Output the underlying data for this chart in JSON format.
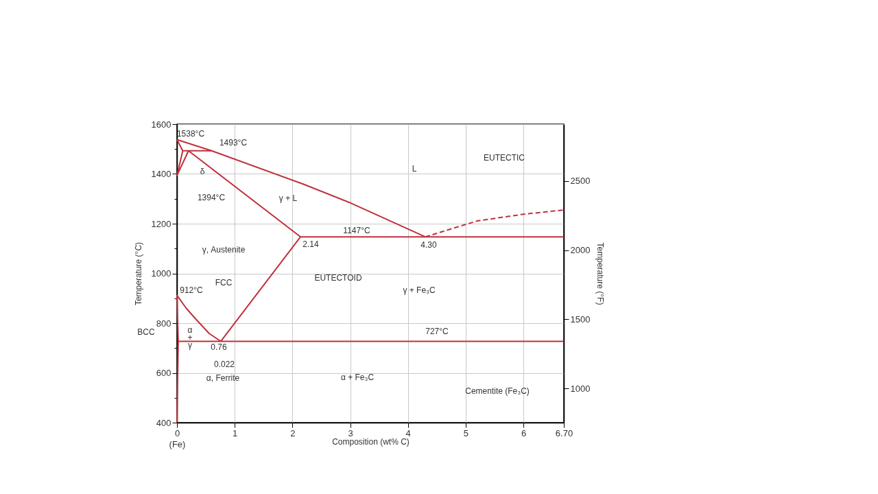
{
  "chart_data": {
    "type": "line",
    "xlabel": "Composition (wt% C)",
    "ylabel": "Temperature (°C)",
    "y2label": "Temperature (°F)",
    "xlim": [
      0,
      6.7
    ],
    "xticks": [
      {
        "value": 0,
        "label": "0\n(Fe)"
      },
      1,
      2,
      3,
      4,
      5,
      6,
      {
        "value": 6.7,
        "label": "6.70"
      }
    ],
    "ylim": [
      400,
      1600
    ],
    "yticks": [
      400,
      {
        "value": 500,
        "label": null
      },
      600,
      {
        "value": 700,
        "label": null
      },
      800,
      {
        "value": 900,
        "label": null
      },
      1000,
      {
        "value": 1100,
        "label": null
      },
      1200,
      {
        "value": 1300,
        "label": null
      },
      1400,
      {
        "value": 1500,
        "label": null
      },
      1600
    ],
    "y2lim": [
      752,
      2912
    ],
    "y2ticks": [
      1000,
      1500,
      2000,
      2500
    ],
    "grid": true,
    "line_style": "solid",
    "series": [
      {
        "color": "#c0303c",
        "x": [
          0,
          0.6,
          2.2,
          3.0,
          4.3
        ],
        "values": [
          1538,
          1493,
          1358,
          1284,
          1147
        ]
      },
      {
        "color": "#c0303c",
        "x": [
          0,
          0.1,
          0,
          0.2,
          2.14,
          0.76
        ],
        "values": [
          1538,
          1493,
          1394,
          1493,
          1147,
          727
        ]
      },
      {
        "color": "#c0303c",
        "x": [
          0.1,
          0.6
        ],
        "values": [
          1493,
          1493
        ]
      },
      {
        "color": "#c0303c",
        "x": [
          2.14,
          6.7
        ],
        "values": [
          1147,
          1147
        ]
      },
      {
        "color": "#c0303c",
        "x": [
          0,
          0.022,
          0,
          0.16,
          0.32,
          0.56,
          0.76
        ],
        "values": [
          400,
          727,
          912,
          860,
          818,
          758,
          727
        ]
      },
      {
        "color": "#c0303c",
        "x": [
          0.022,
          6.7
        ],
        "values": [
          727,
          727
        ]
      },
      {
        "color": "#c0303c",
        "line_style": "dashed",
        "x": [
          4.3,
          5.2,
          6.0,
          6.7
        ],
        "values": [
          1147,
          1211,
          1238,
          1255
        ]
      }
    ],
    "annotations": [
      "1538°C",
      "1493°C",
      "δ",
      "1394°C",
      "γ + L",
      "L",
      "EUTECTIC",
      "1147°C",
      "2.14",
      "4.30",
      "γ, Austenite",
      "FCC",
      "912°C",
      "EUTECTOID",
      "γ + Fe₃C",
      "α\n+\nγ",
      "727°C",
      "0.76",
      "0.022",
      "α, Ferrite",
      "α + Fe₃C",
      "Cementite (Fe₃C)",
      "BCC"
    ]
  }
}
